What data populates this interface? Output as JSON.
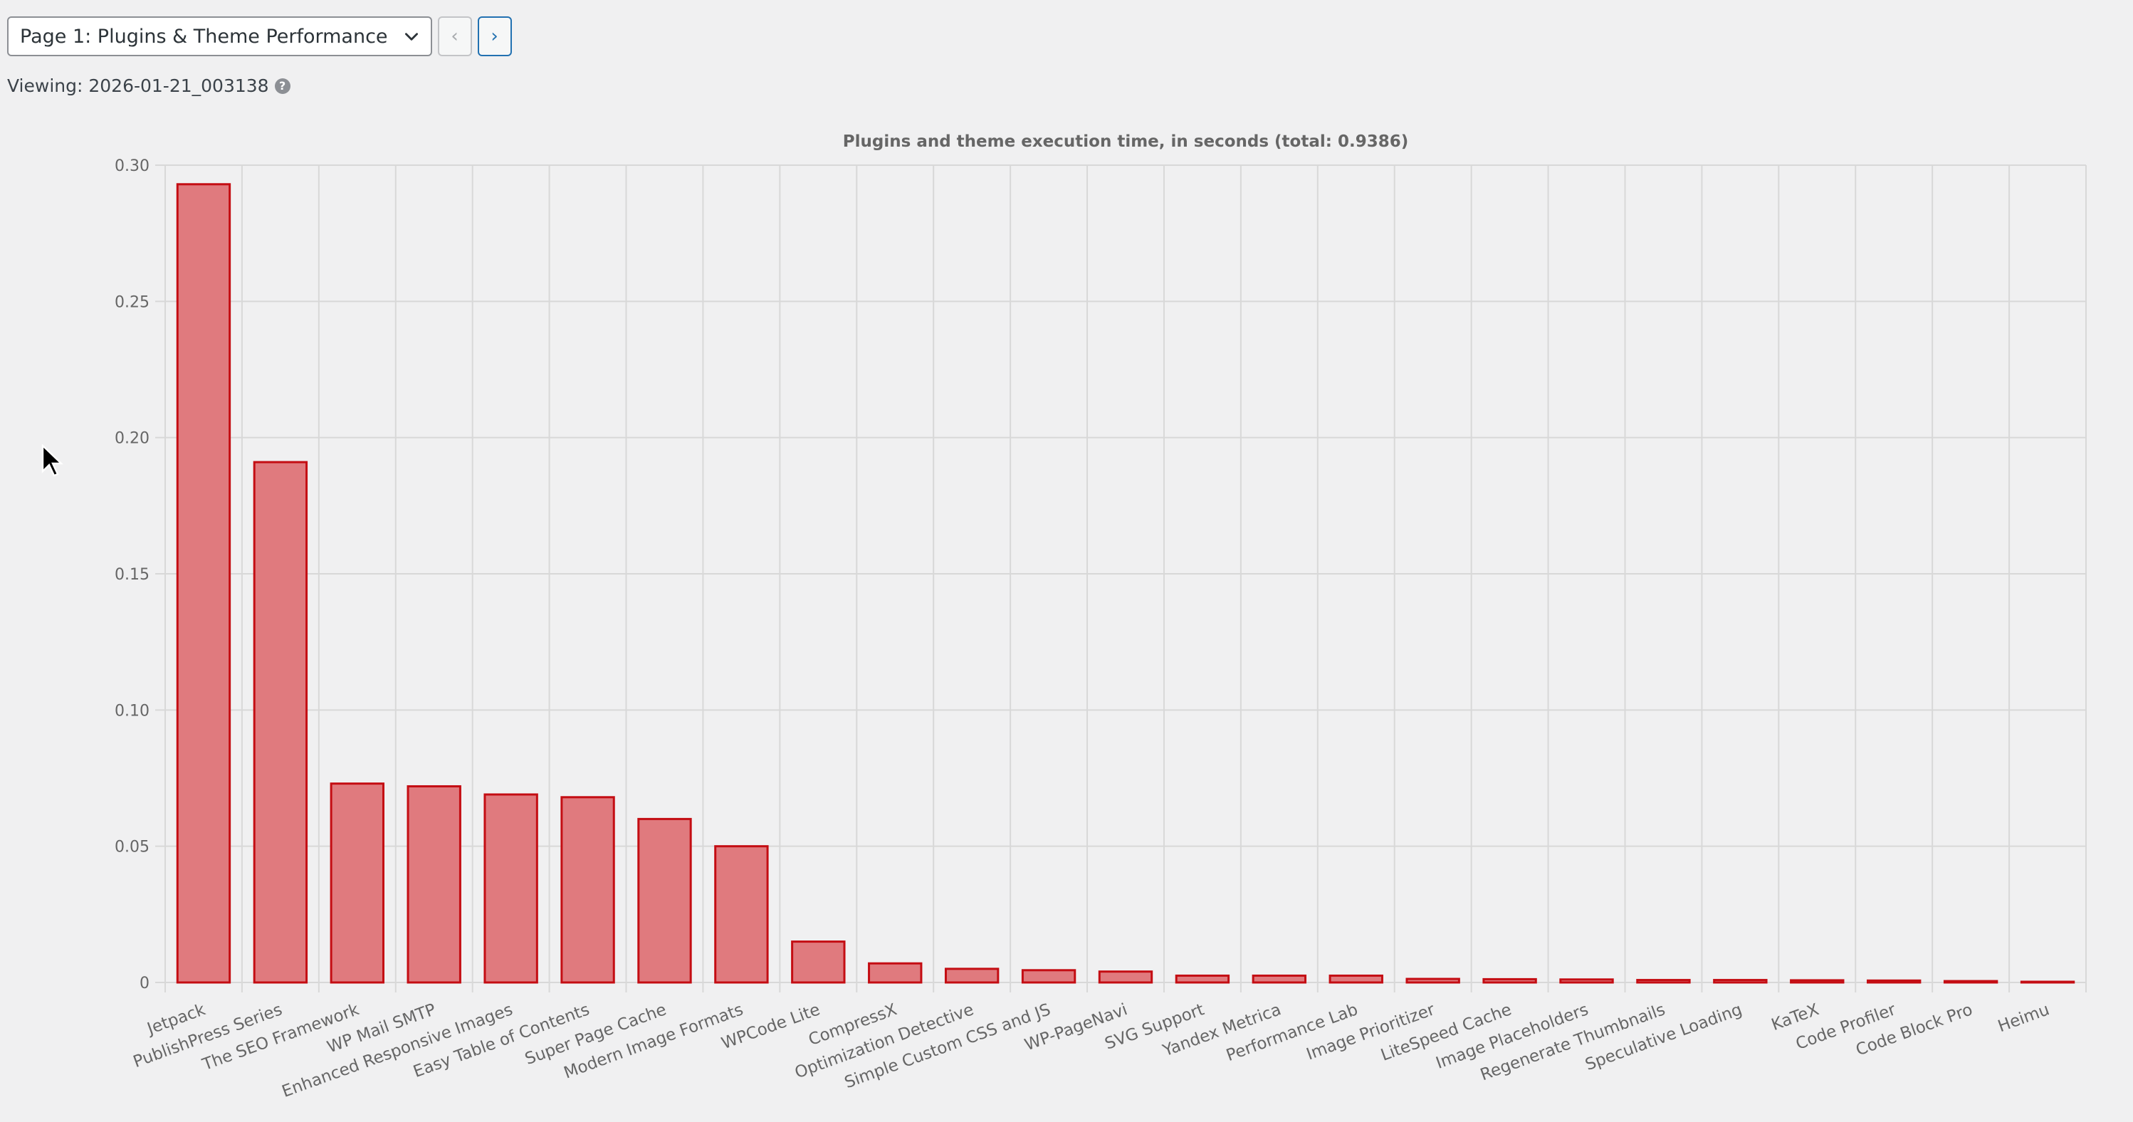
{
  "toolbar": {
    "page_select": "Page 1: Plugins & Theme Performance",
    "prev_label": "‹",
    "next_label": "›"
  },
  "viewing": {
    "label": "Viewing: 2026-01-21_003138"
  },
  "colors": {
    "bar_fill": "#e07a7e",
    "bar_stroke": "#c40d13",
    "grid": "#d8d8d8"
  },
  "chart_data": {
    "type": "bar",
    "title": "Plugins and theme execution time, in seconds (total: 0.9386)",
    "xlabel": "",
    "ylabel": "",
    "ylim": [
      0,
      0.3
    ],
    "yticks": [
      "0",
      "0.05",
      "0.10",
      "0.15",
      "0.20",
      "0.25",
      "0.30"
    ],
    "grid": true,
    "categories": [
      "Jetpack",
      "PublishPress Series",
      "The SEO Framework",
      "WP Mail SMTP",
      "Enhanced Responsive Images",
      "Easy Table of Contents",
      "Super Page Cache",
      "Modern Image Formats",
      "WPCode Lite",
      "CompressX",
      "Optimization Detective",
      "Simple Custom CSS and JS",
      "WP-PageNavi",
      "SVG Support",
      "Yandex Metrica",
      "Performance Lab",
      "Image Prioritizer",
      "LiteSpeed Cache",
      "Image Placeholders",
      "Regenerate Thumbnails",
      "Speculative Loading",
      "KaTeX",
      "Code Profiler",
      "Code Block Pro",
      "Heimu"
    ],
    "values": [
      0.293,
      0.191,
      0.073,
      0.072,
      0.069,
      0.068,
      0.06,
      0.05,
      0.015,
      0.007,
      0.005,
      0.0045,
      0.004,
      0.0025,
      0.0025,
      0.0025,
      0.0013,
      0.0012,
      0.0011,
      0.0009,
      0.0009,
      0.0008,
      0.0007,
      0.0005,
      0.0002
    ]
  }
}
